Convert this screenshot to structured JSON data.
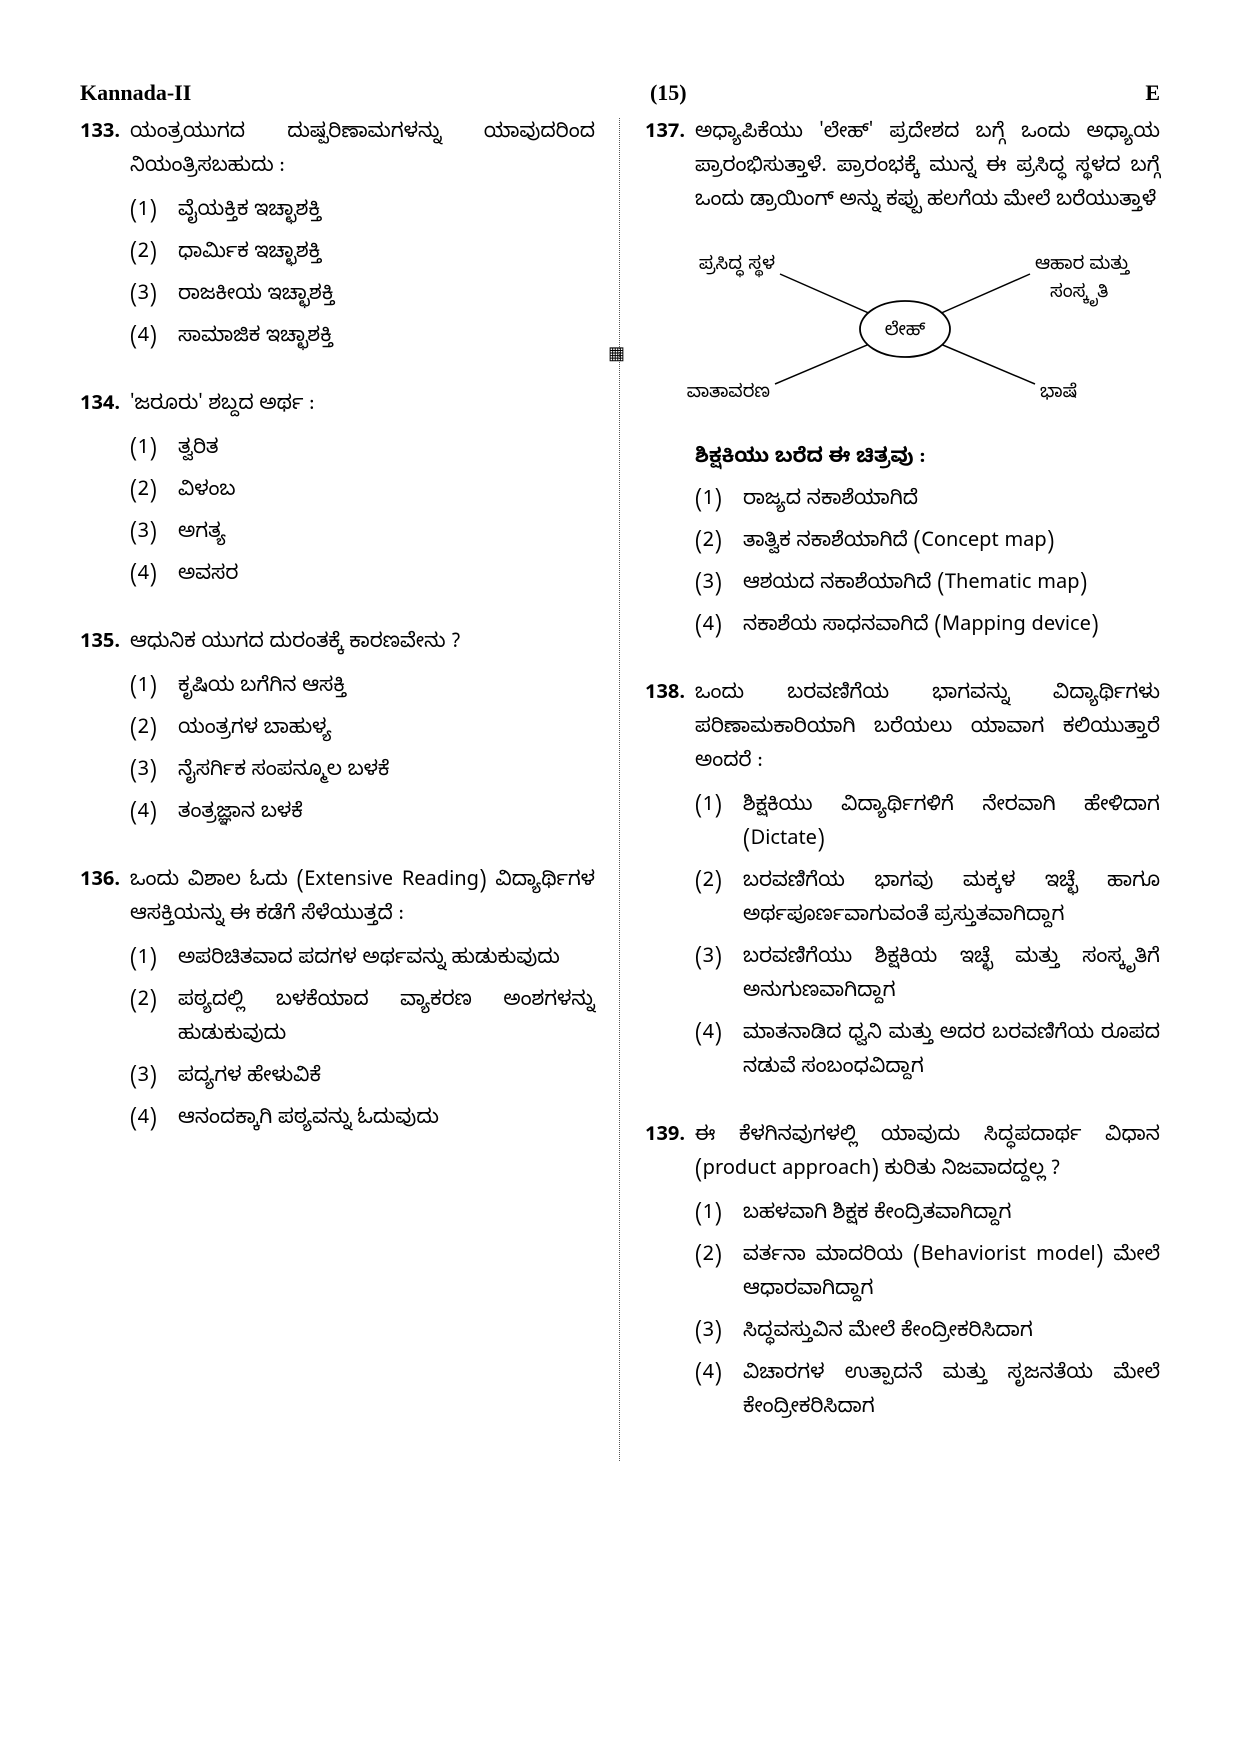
{
  "header": {
    "left": "Kannada-II",
    "center": "(15)",
    "right": "E"
  },
  "diagram": {
    "center": "ಲೇಹ್",
    "tl": "ಪ್ರಸಿದ್ಧ ಸ್ಥಳ",
    "tr": "ಆಹಾರ ಮತ್ತು",
    "tr2": "ಸಂಸ್ಕೃತಿ",
    "bl": "ವಾತಾವರಣ",
    "br": "ಭಾಷೆ",
    "ellipse_stroke": "#000000",
    "line_stroke": "#000000"
  },
  "left_questions": [
    {
      "num": "133.",
      "text": "ಯಂತ್ರಯುಗದ ದುಷ್ಪರಿಣಾಮಗಳನ್ನು ಯಾವುದರಿಂದ ನಿಯಂತ್ರಿಸಬಹುದು :",
      "options": [
        "ವೈಯಕ್ತಿಕ ಇಚ್ಛಾಶಕ್ತಿ",
        "ಧಾರ್ಮಿಕ ಇಚ್ಛಾಶಕ್ತಿ",
        "ರಾಜಕೀಯ ಇಚ್ಛಾಶಕ್ತಿ",
        "ಸಾಮಾಜಿಕ ಇಚ್ಛಾಶಕ್ತಿ"
      ]
    },
    {
      "num": "134.",
      "text": "'ಜರೂರು' ಶಬ್ದದ ಅರ್ಥ :",
      "options": [
        "ತ್ವರಿತ",
        "ವಿಳಂಬ",
        "ಅಗತ್ಯ",
        "ಅವಸರ"
      ]
    },
    {
      "num": "135.",
      "text": "ಆಧುನಿಕ ಯುಗದ ದುರಂತಕ್ಕೆ ಕಾರಣವೇನು ?",
      "options": [
        "ಕೃಷಿಯ ಬಗೆಗಿನ ಆಸಕ್ತಿ",
        "ಯಂತ್ರಗಳ ಬಾಹುಳ್ಯ",
        "ನೈಸರ್ಗಿಕ ಸಂಪನ್ಮೂಲ ಬಳಕೆ",
        "ತಂತ್ರಜ್ಞಾನ ಬಳಕೆ"
      ]
    },
    {
      "num": "136.",
      "text": "ಒಂದು ವಿಶಾಲ ಓದು (Extensive Reading) ವಿದ್ಯಾರ್ಥಿಗಳ ಆಸಕ್ತಿಯನ್ನು ಈ ಕಡೆಗೆ ಸೆಳೆಯುತ್ತದೆ :",
      "options": [
        "ಅಪರಿಚಿತವಾದ ಪದಗಳ ಅರ್ಥವನ್ನು ಹುಡುಕುವುದು",
        "ಪಠ್ಯದಲ್ಲಿ ಬಳಕೆಯಾದ ವ್ಯಾಕರಣ ಅಂಶಗಳನ್ನು ಹುಡುಕುವುದು",
        "ಪದ್ಯಗಳ ಹೇಳುವಿಕೆ",
        "ಆನಂದಕ್ಕಾಗಿ ಪಠ್ಯವನ್ನು ಓದುವುದು"
      ]
    }
  ],
  "right_questions": [
    {
      "num": "137.",
      "text": "ಅಧ್ಯಾಪಿಕೆಯು 'ಲೇಹ್' ಪ್ರದೇಶದ ಬಗ್ಗೆ ಒಂದು ಅಧ್ಯಾಯ ಪ್ರಾರಂಭಿಸುತ್ತಾಳೆ. ಪ್ರಾರಂಭಕ್ಕೆ ಮುನ್ನ ಈ ಪ್ರಸಿದ್ಧ ಸ್ಥಳದ ಬಗ್ಗೆ ಒಂದು ಡ್ರಾಯಿಂಗ್ ಅನ್ನು ಕಪ್ಪು ಹಲಗೆಯ ಮೇಲೆ ಬರೆಯುತ್ತಾಳೆ",
      "has_diagram": true,
      "sub_caption": "ಶಿಕ್ಷಕಿಯು ಬರೆದ ಈ ಚಿತ್ರವು :",
      "options": [
        "ರಾಜ್ಯದ ನಕಾಶೆಯಾಗಿದೆ",
        "ತಾತ್ವಿಕ ನಕಾಶೆಯಾಗಿದೆ (Concept map)",
        "ಆಶಯದ ನಕಾಶೆಯಾಗಿದೆ (Thematic map)",
        "ನಕಾಶೆಯ ಸಾಧನವಾಗಿದೆ (Mapping device)"
      ]
    },
    {
      "num": "138.",
      "text": "ಒಂದು ಬರವಣಿಗೆಯ ಭಾಗವನ್ನು ವಿದ್ಯಾರ್ಥಿಗಳು ಪರಿಣಾಮಕಾರಿಯಾಗಿ ಬರೆಯಲು ಯಾವಾಗ ಕಲಿಯುತ್ತಾರೆ ಅಂದರೆ :",
      "options": [
        "ಶಿಕ್ಷಕಿಯು ವಿದ್ಯಾರ್ಥಿಗಳಿಗೆ ನೇರವಾಗಿ ಹೇಳಿದಾಗ (Dictate)",
        "ಬರವಣಿಗೆಯ ಭಾಗವು ಮಕ್ಕಳ ಇಚ್ಛೆ ಹಾಗೂ ಅರ್ಥಪೂರ್ಣವಾಗುವಂತೆ ಪ್ರಸ್ತುತವಾಗಿದ್ದಾಗ",
        "ಬರವಣಿಗೆಯು ಶಿಕ್ಷಕಿಯ ಇಚ್ಛೆ ಮತ್ತು ಸಂಸ್ಕೃತಿಗೆ ಅನುಗುಣವಾಗಿದ್ದಾಗ",
        "ಮಾತನಾಡಿದ ಧ್ವನಿ ಮತ್ತು ಅದರ ಬರವಣಿಗೆಯ ರೂಪದ ನಡುವೆ ಸಂಬಂಧವಿದ್ದಾಗ"
      ]
    },
    {
      "num": "139.",
      "text": "ಈ ಕೆಳಗಿನವುಗಳಲ್ಲಿ ಯಾವುದು ಸಿದ್ಧಪದಾರ್ಥ ವಿಧಾನ (product approach) ಕುರಿತು ನಿಜವಾದದ್ದಲ್ಲ ?",
      "options": [
        "ಬಹಳವಾಗಿ ಶಿಕ್ಷಕ ಕೇಂದ್ರಿತವಾಗಿದ್ದಾಗ",
        "ವರ್ತನಾ ಮಾದರಿಯ (Behaviorist model) ಮೇಲೆ ಆಧಾರವಾಗಿದ್ದಾಗ",
        "ಸಿದ್ಧವಸ್ತುವಿನ ಮೇಲೆ ಕೇಂದ್ರೀಕರಿಸಿದಾಗ",
        "ವಿಚಾರಗಳ ಉತ್ಪಾದನೆ ಮತ್ತು ಸೃಜನತೆಯ ಮೇಲೆ ಕೇಂದ್ರೀಕರಿಸಿದಾಗ"
      ]
    }
  ]
}
